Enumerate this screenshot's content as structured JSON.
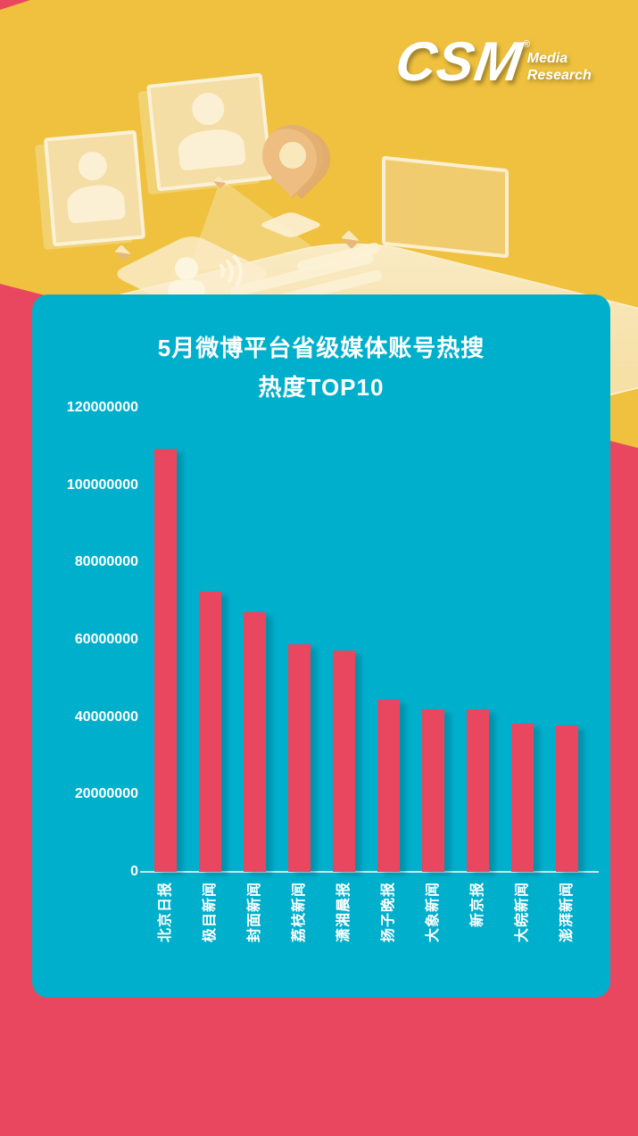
{
  "colors": {
    "background_yellow": "#EFC13E",
    "background_red": "#E8475F",
    "card_teal": "#00AFCC",
    "bar_red": "#E8475F",
    "text_white": "#FFFFFF",
    "illustration_cream": "#F7E3AE"
  },
  "logo": {
    "name": "CSM",
    "registered_mark": "®",
    "tagline_line1": "Media",
    "tagline_line2": "Research"
  },
  "chart_data": {
    "type": "bar",
    "title": "5月微博平台省级媒体账号热搜 热度TOP10",
    "title_line1": "5月微博平台省级媒体账号热搜",
    "title_line2": "热度TOP10",
    "categories": [
      "北京日报",
      "极目新闻",
      "封面新闻",
      "荔枝新闻",
      "潇湘晨报",
      "扬子晚报",
      "大象新闻",
      "新京报",
      "大皖新闻",
      "澎湃新闻"
    ],
    "values": [
      109400000,
      72400000,
      67200000,
      58800000,
      57300000,
      44600000,
      42100000,
      41900000,
      38400000,
      37900000
    ],
    "ylim": [
      0,
      120000000
    ],
    "ytick_step": 20000000,
    "ytick_labels": [
      "0",
      "20000000",
      "40000000",
      "60000000",
      "80000000",
      "100000000",
      "120000000"
    ],
    "xlabel": "",
    "ylabel": "",
    "grid": false,
    "legend": false,
    "bar_color": "#E8475F",
    "axis_line_color": "#EBF4F6",
    "label_color": "#FFFFFF",
    "category_label_rotation": -90
  },
  "icons": {
    "csm-logo": "bold italic white text",
    "photo-frame-icon": "css rectangle with person silhouette",
    "person-icon": "css circle head + rounded shoulders",
    "location-pin-icon": "css teardrop with hole",
    "phone-slab-icon": "css isometric rounded diamond",
    "speaker-icon": "css head profile",
    "sound-waves-icon": "css concentric arcs",
    "text-lines-icon": "css rounded bars",
    "cube-icon": "css two-tone square",
    "window-frame-icon": "css outlined rectangle"
  }
}
